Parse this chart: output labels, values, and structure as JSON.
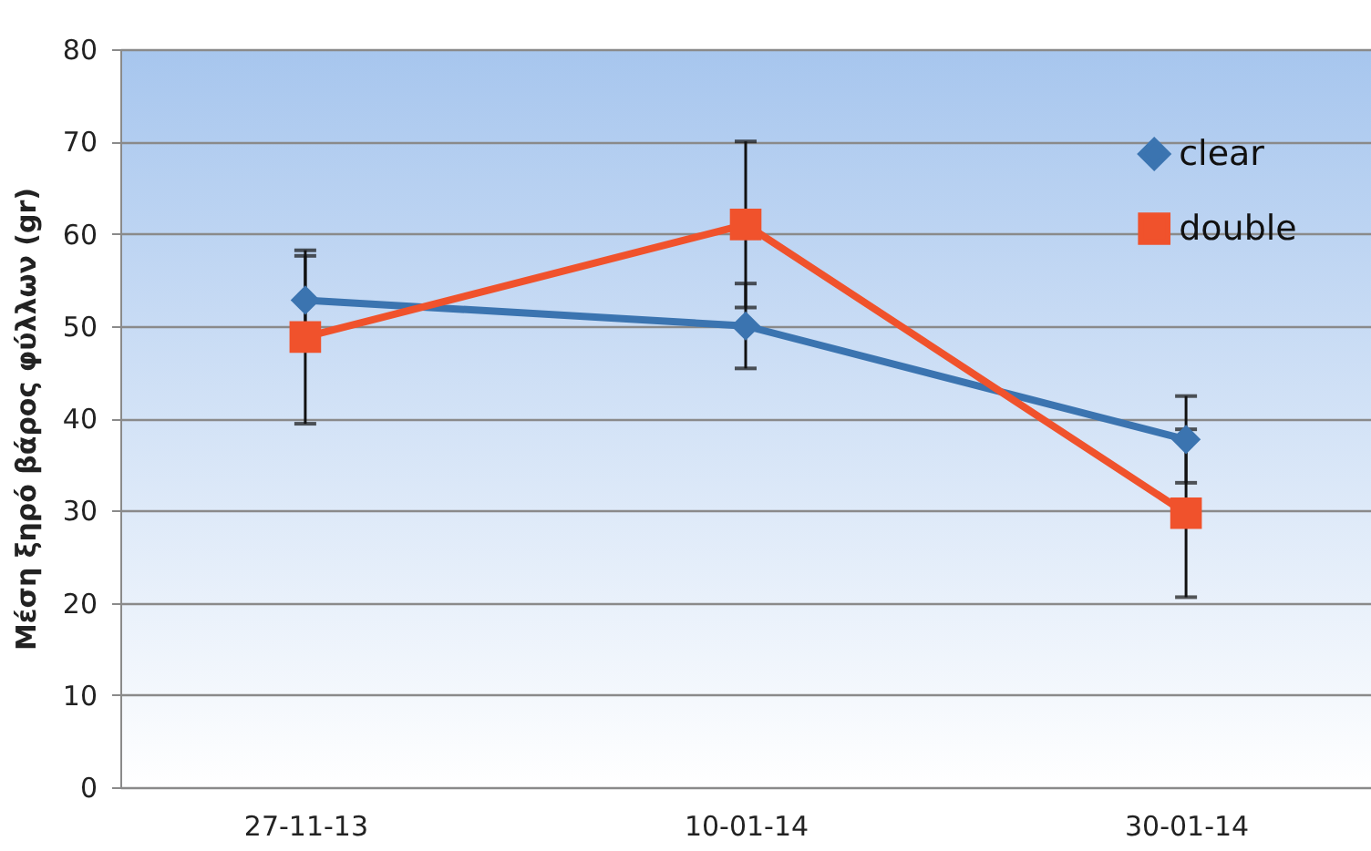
{
  "chart_data": {
    "type": "line",
    "ylabel": "Μέση ξηρό βάρος φύλλων (gr)",
    "categories": [
      "27-11-13",
      "10-01-14",
      "30-01-14"
    ],
    "series": [
      {
        "name": "clear",
        "color": "#3b74b0",
        "marker": "diamond",
        "values": [
          52.8,
          50,
          37.7
        ],
        "errors": [
          4.8,
          4.6,
          4.7
        ]
      },
      {
        "name": "double",
        "color": "#f0522c",
        "marker": "square",
        "values": [
          48.8,
          61,
          29.7
        ],
        "errors": [
          9.4,
          9,
          9.1
        ]
      }
    ],
    "ylim": [
      0,
      80
    ],
    "yticks": [
      0,
      10,
      20,
      30,
      40,
      50,
      60,
      70,
      80
    ],
    "grid": "y",
    "legend": "top right"
  }
}
